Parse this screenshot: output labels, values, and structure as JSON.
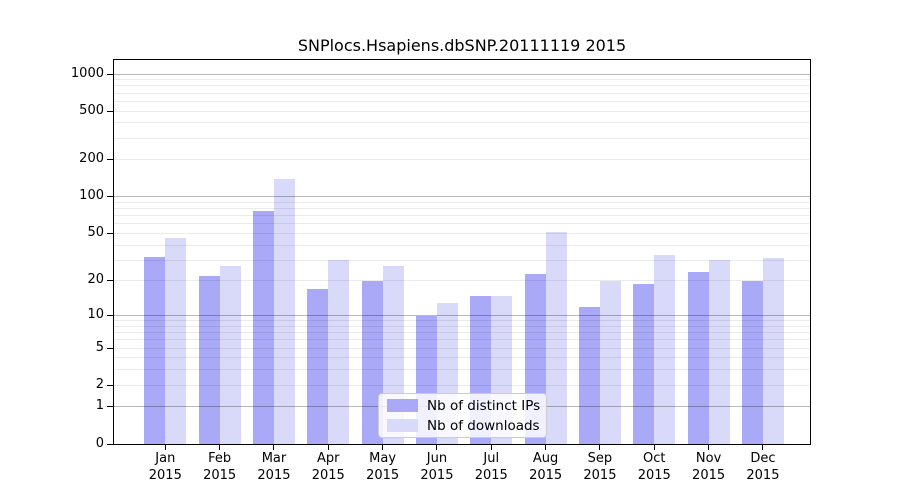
{
  "chart_data": {
    "type": "bar",
    "title": "SNPlocs.Hsapiens.dbSNP.20111119 2015",
    "categories": [
      "Jan 2015",
      "Feb 2015",
      "Mar 2015",
      "Apr 2015",
      "May 2015",
      "Jun 2015",
      "Jul 2015",
      "Aug 2015",
      "Sep 2015",
      "Oct 2015",
      "Nov 2015",
      "Dec 2015"
    ],
    "series": [
      {
        "name": "Nb of distinct IPs",
        "color": "#a9a9f7",
        "values": [
          32,
          22,
          77,
          17,
          20,
          10,
          15,
          23,
          12,
          19,
          24,
          20
        ]
      },
      {
        "name": "Nb of downloads",
        "color": "#d9d9fa",
        "values": [
          46,
          27,
          140,
          30,
          27,
          13,
          15,
          51,
          20,
          33,
          30,
          31
        ]
      }
    ],
    "yscale": "log1p",
    "ylim": [
      0,
      1300
    ],
    "yticks": [
      0,
      1,
      2,
      5,
      10,
      20,
      50,
      100,
      200,
      500,
      1000
    ],
    "gridlines": {
      "major": [
        1,
        10,
        100,
        1000
      ],
      "minor": [
        2,
        3,
        4,
        5,
        6,
        7,
        8,
        9,
        20,
        30,
        40,
        50,
        60,
        70,
        80,
        90,
        200,
        300,
        400,
        500,
        600,
        700,
        800,
        900
      ]
    },
    "grid": true,
    "legend_position": "lower center",
    "style": {
      "background": "#ffffff",
      "axis_color": "#000000",
      "grid_major_color": "rgba(0,0,0,0.28)",
      "grid_minor_color": "rgba(0,0,0,0.08)",
      "legend_border_color": "#cccccc"
    }
  }
}
